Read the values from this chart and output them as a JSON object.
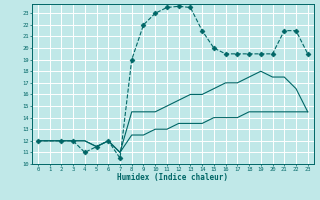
{
  "xlabel": "Humidex (Indice chaleur)",
  "bg_color": "#c0e8e8",
  "grid_color": "#ffffff",
  "line_color": "#006666",
  "xlim": [
    -0.5,
    23.5
  ],
  "ylim": [
    10,
    23.8
  ],
  "yticks": [
    10,
    11,
    12,
    13,
    14,
    15,
    16,
    17,
    18,
    19,
    20,
    21,
    22,
    23
  ],
  "xticks": [
    0,
    1,
    2,
    3,
    4,
    5,
    6,
    7,
    8,
    9,
    10,
    11,
    12,
    13,
    14,
    15,
    16,
    17,
    18,
    19,
    20,
    21,
    22,
    23
  ],
  "series": [
    {
      "x": [
        0,
        2,
        3,
        4,
        5,
        6,
        7,
        8,
        9,
        10,
        11,
        12,
        13,
        14,
        15,
        16,
        17,
        18,
        19,
        20,
        21,
        22,
        23
      ],
      "y": [
        12,
        12,
        12,
        11,
        11.5,
        12,
        10.5,
        19,
        22,
        23,
        23.5,
        23.6,
        23.5,
        21.5,
        20,
        19.5,
        19.5,
        19.5,
        19.5,
        19.5,
        21.5,
        21.5,
        19.5
      ],
      "linestyle": "--",
      "marker": "D",
      "markersize": 2.5
    },
    {
      "x": [
        0,
        2,
        3,
        4,
        5,
        6,
        7,
        8,
        9,
        10,
        11,
        12,
        13,
        14,
        15,
        16,
        17,
        18,
        19,
        20,
        21,
        22,
        23
      ],
      "y": [
        12,
        12,
        12,
        12,
        11.5,
        12,
        11,
        14.5,
        14.5,
        14.5,
        15,
        15.5,
        16,
        16,
        16.5,
        17,
        17,
        17.5,
        18,
        17.5,
        17.5,
        16.5,
        14.5
      ],
      "linestyle": "-",
      "marker": null,
      "markersize": 0
    },
    {
      "x": [
        0,
        2,
        3,
        4,
        5,
        6,
        7,
        8,
        9,
        10,
        11,
        12,
        13,
        14,
        15,
        16,
        17,
        18,
        19,
        20,
        21,
        22,
        23
      ],
      "y": [
        12,
        12,
        12,
        12,
        11.5,
        12,
        11,
        12.5,
        12.5,
        13,
        13,
        13.5,
        13.5,
        13.5,
        14,
        14,
        14,
        14.5,
        14.5,
        14.5,
        14.5,
        14.5,
        14.5
      ],
      "linestyle": "-",
      "marker": null,
      "markersize": 0
    }
  ]
}
